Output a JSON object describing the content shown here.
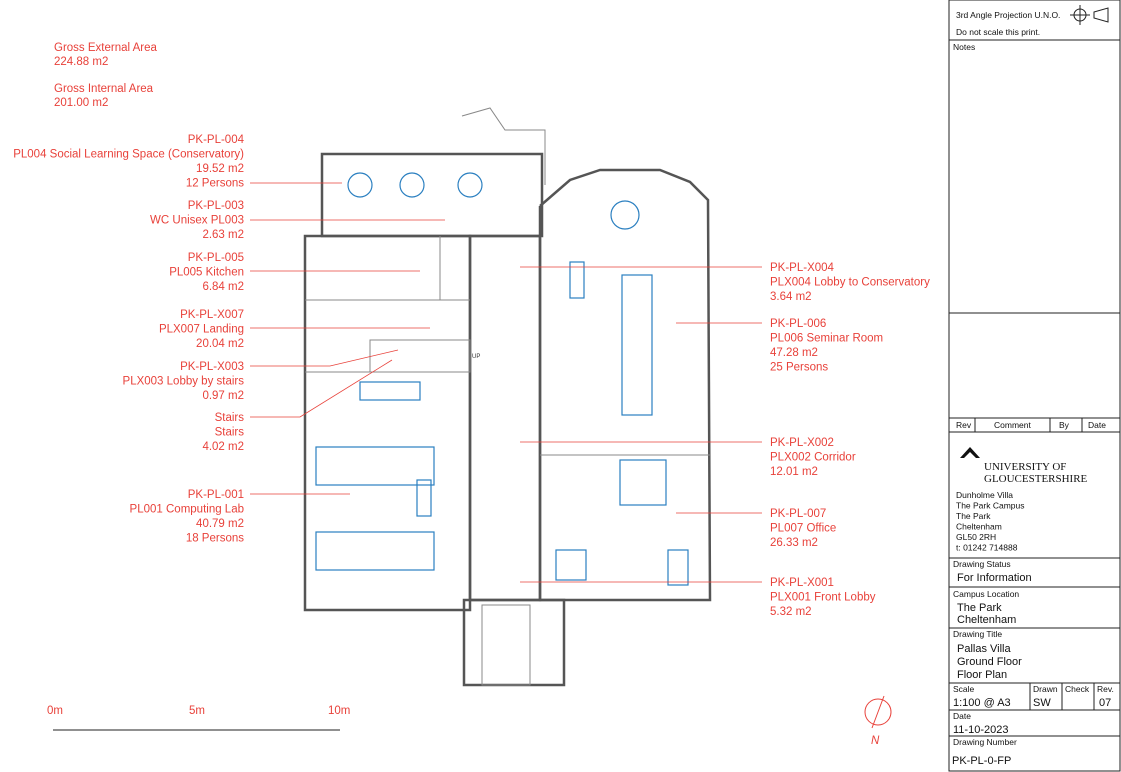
{
  "areas": [
    {
      "label": "Gross External Area",
      "value": "224.88 m2"
    },
    {
      "label": "Gross Internal Area",
      "value": "201.00 m2"
    }
  ],
  "rooms_left": [
    {
      "lines": [
        "PK-PL-004",
        "PL004 Social Learning Space (Conservatory)",
        "19.52 m2",
        "12 Persons"
      ]
    },
    {
      "lines": [
        "PK-PL-003",
        "WC Unisex PL003",
        "2.63 m2"
      ]
    },
    {
      "lines": [
        "PK-PL-005",
        "PL005 Kitchen",
        "6.84 m2"
      ]
    },
    {
      "lines": [
        "PK-PL-X007",
        "PLX007 Landing",
        "20.04 m2"
      ]
    },
    {
      "lines": [
        "PK-PL-X003",
        "PLX003 Lobby by stairs",
        "0.97 m2"
      ]
    },
    {
      "lines": [
        "Stairs",
        "Stairs",
        "4.02 m2"
      ]
    },
    {
      "lines": [
        "PK-PL-001",
        "PL001 Computing Lab",
        "40.79 m2",
        "18 Persons"
      ]
    }
  ],
  "rooms_right": [
    {
      "lines": [
        "PK-PL-X004",
        "PLX004 Lobby to Conservatory",
        "3.64 m2"
      ]
    },
    {
      "lines": [
        "PK-PL-006",
        "PL006 Seminar Room",
        "47.28 m2",
        "25 Persons"
      ]
    },
    {
      "lines": [
        "PK-PL-X002",
        "PLX002 Corridor",
        "12.01 m2"
      ]
    },
    {
      "lines": [
        "PK-PL-007",
        "PL007 Office",
        "26.33 m2"
      ]
    },
    {
      "lines": [
        "PK-PL-X001",
        "PLX001 Front Lobby",
        "5.32 m2"
      ]
    }
  ],
  "plan_text": {
    "up": "UP"
  },
  "scale_bar": [
    "0m",
    "5m",
    "10m"
  ],
  "north": "N",
  "title_block": {
    "projection": "3rd Angle Projection U.N.O.",
    "warning": "Do not scale this print.",
    "notes": "Notes",
    "revision_headers": [
      "Rev",
      "Comment",
      "By",
      "Date"
    ],
    "logo": [
      "UNIVERSITY OF",
      "GLOUCESTERSHIRE"
    ],
    "address": [
      "Dunholme Villa",
      "The Park Campus",
      "The Park",
      "Cheltenham",
      "GL50 2RH",
      "t: 01242 714888"
    ],
    "status_label": "Drawing Status",
    "status": "For Information",
    "campus_label": "Campus Location",
    "campus": [
      "The Park",
      "Cheltenham"
    ],
    "title_label": "Drawing Title",
    "title": [
      "Pallas Villa",
      "Ground Floor",
      "Floor Plan"
    ],
    "scale_label": "Scale",
    "scale": "1:100 @ A3",
    "drawn_label": "Drawn",
    "drawn": "SW",
    "check_label": "Check",
    "rev_label": "Rev.",
    "rev": "07",
    "date_label": "Date",
    "date": "11-10-2023",
    "number_label": "Drawing Number",
    "number": "PK-PL-0-FP"
  }
}
